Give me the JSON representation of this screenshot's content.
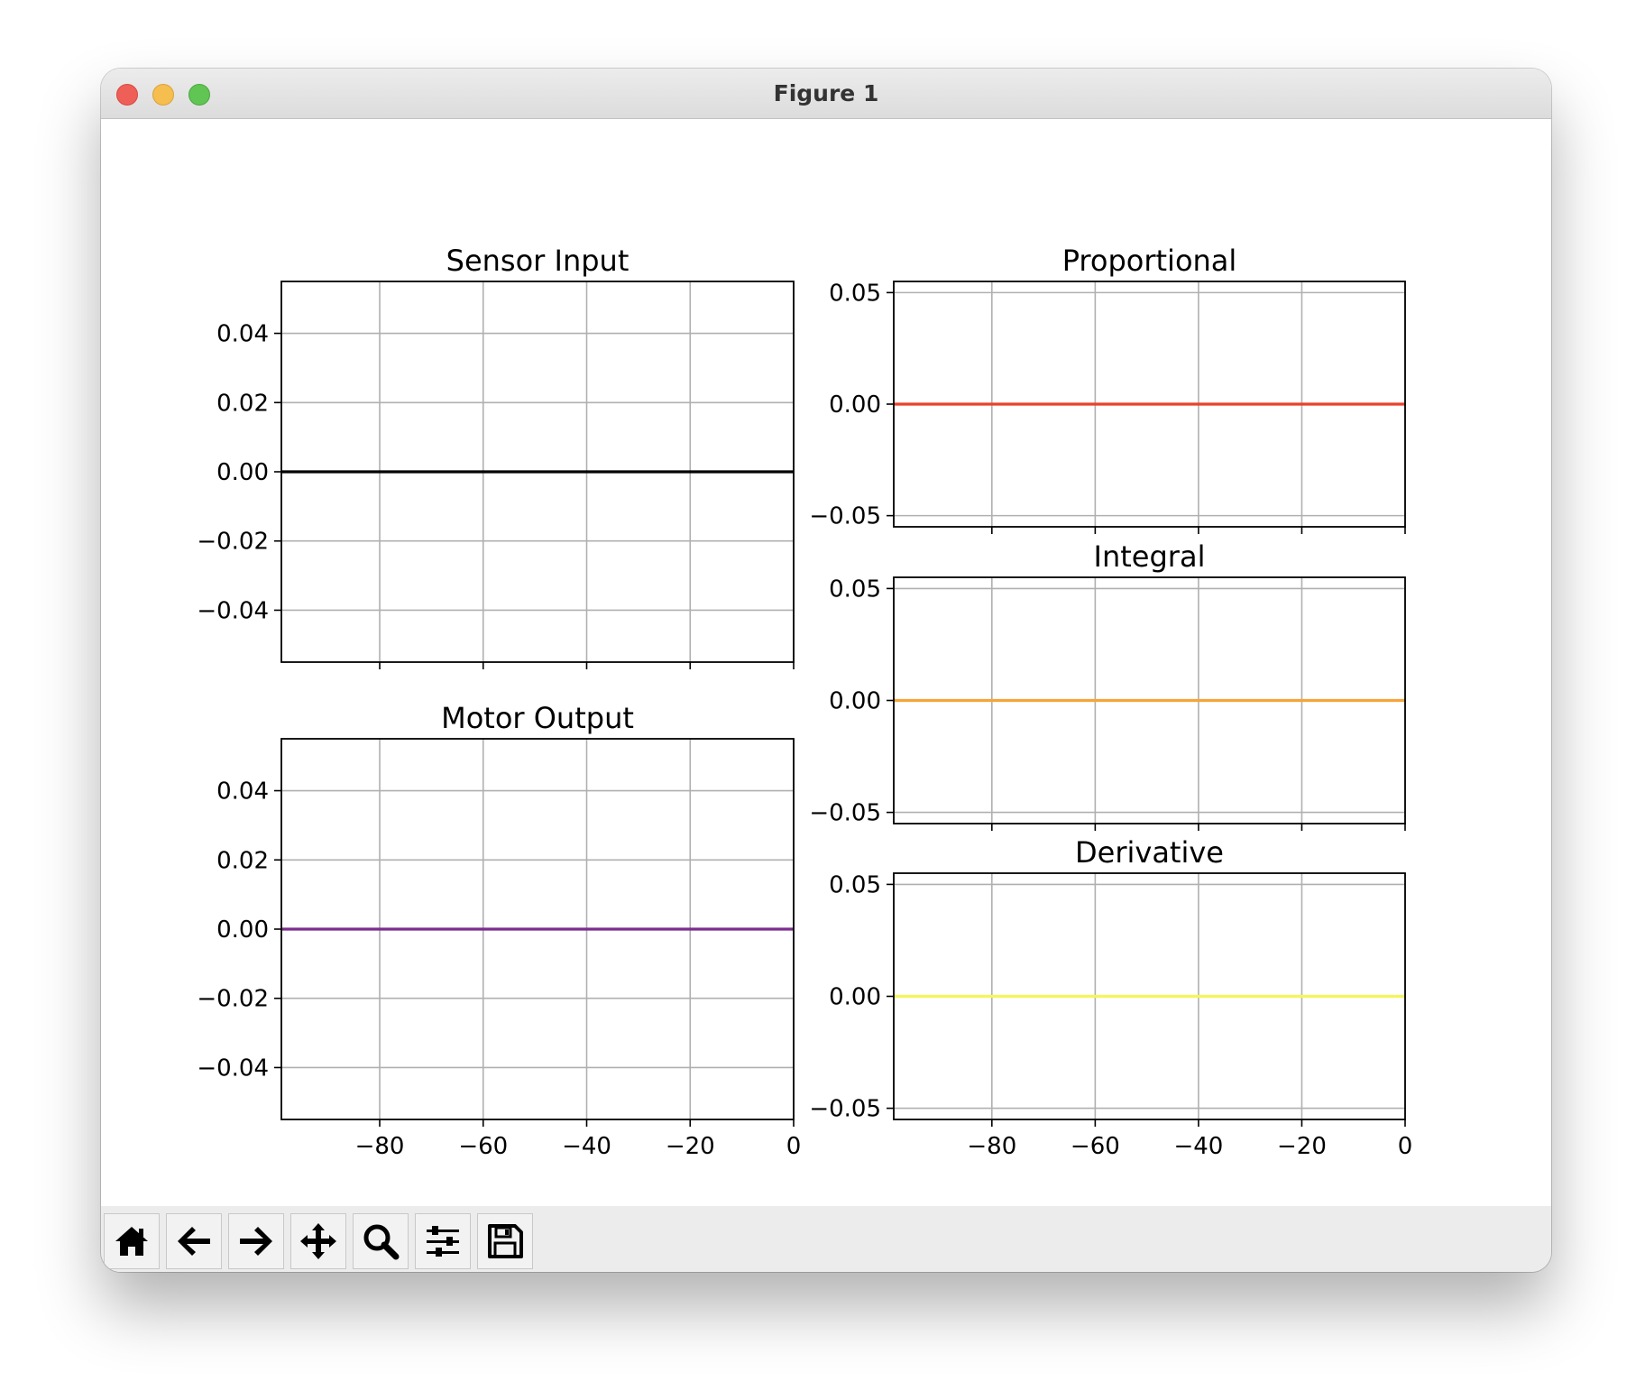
{
  "window": {
    "title": "Figure 1"
  },
  "toolbar": {
    "buttons": [
      {
        "name": "home-icon"
      },
      {
        "name": "back-arrow-icon"
      },
      {
        "name": "forward-arrow-icon"
      },
      {
        "name": "pan-move-icon"
      },
      {
        "name": "zoom-magnifier-icon"
      },
      {
        "name": "configure-subplots-icon"
      },
      {
        "name": "save-disk-icon"
      }
    ]
  },
  "colors": {
    "sensor": "#000000",
    "motor": "#7b2d8e",
    "proportional": "#e8422a",
    "integral": "#f7a43a",
    "derivative": "#f6f55a",
    "grid": "#b0b0b0"
  },
  "chart_data": [
    {
      "id": "sensor",
      "type": "line",
      "title": "Sensor Input",
      "xlim": [
        -99,
        0
      ],
      "ylim": [
        -0.055,
        0.055
      ],
      "xticks": [
        -80,
        -60,
        -40,
        -20,
        0
      ],
      "xticklabels": [],
      "yticks": [
        0.04,
        0.02,
        0.0,
        -0.02,
        -0.04
      ],
      "yticklabels": [
        "0.04",
        "0.02",
        "0.00",
        "−0.02",
        "−0.04"
      ],
      "grid": true,
      "series": [
        {
          "x": [
            -99,
            0
          ],
          "y": [
            0,
            0
          ],
          "color": "#000000"
        }
      ]
    },
    {
      "id": "motor",
      "type": "line",
      "title": "Motor Output",
      "xlim": [
        -99,
        0
      ],
      "ylim": [
        -0.055,
        0.055
      ],
      "xticks": [
        -80,
        -60,
        -40,
        -20,
        0
      ],
      "xticklabels": [
        "−80",
        "−60",
        "−40",
        "−20",
        "0"
      ],
      "yticks": [
        0.04,
        0.02,
        0.0,
        -0.02,
        -0.04
      ],
      "yticklabels": [
        "0.04",
        "0.02",
        "0.00",
        "−0.02",
        "−0.04"
      ],
      "grid": true,
      "series": [
        {
          "x": [
            -99,
            0
          ],
          "y": [
            0,
            0
          ],
          "color": "#7b2d8e"
        }
      ]
    },
    {
      "id": "proportional",
      "type": "line",
      "title": "Proportional",
      "xlim": [
        -99,
        0
      ],
      "ylim": [
        -0.055,
        0.055
      ],
      "xticks": [
        -80,
        -60,
        -40,
        -20,
        0
      ],
      "xticklabels": [],
      "yticks": [
        0.05,
        0.0,
        -0.05
      ],
      "yticklabels": [
        "0.05",
        "0.00",
        "−0.05"
      ],
      "grid": true,
      "series": [
        {
          "x": [
            -99,
            0
          ],
          "y": [
            0,
            0
          ],
          "color": "#e8422a"
        }
      ]
    },
    {
      "id": "integral",
      "type": "line",
      "title": "Integral",
      "xlim": [
        -99,
        0
      ],
      "ylim": [
        -0.055,
        0.055
      ],
      "xticks": [
        -80,
        -60,
        -40,
        -20,
        0
      ],
      "xticklabels": [],
      "yticks": [
        0.05,
        0.0,
        -0.05
      ],
      "yticklabels": [
        "0.05",
        "0.00",
        "−0.05"
      ],
      "grid": true,
      "series": [
        {
          "x": [
            -99,
            0
          ],
          "y": [
            0,
            0
          ],
          "color": "#f7a43a"
        }
      ]
    },
    {
      "id": "derivative",
      "type": "line",
      "title": "Derivative",
      "xlim": [
        -99,
        0
      ],
      "ylim": [
        -0.055,
        0.055
      ],
      "xticks": [
        -80,
        -60,
        -40,
        -20,
        0
      ],
      "xticklabels": [
        "−80",
        "−60",
        "−40",
        "−20",
        "0"
      ],
      "yticks": [
        0.05,
        0.0,
        -0.05
      ],
      "yticklabels": [
        "0.05",
        "0.00",
        "−0.05"
      ],
      "grid": true,
      "series": [
        {
          "x": [
            -99,
            0
          ],
          "y": [
            0,
            0
          ],
          "color": "#f6f55a"
        }
      ]
    }
  ]
}
